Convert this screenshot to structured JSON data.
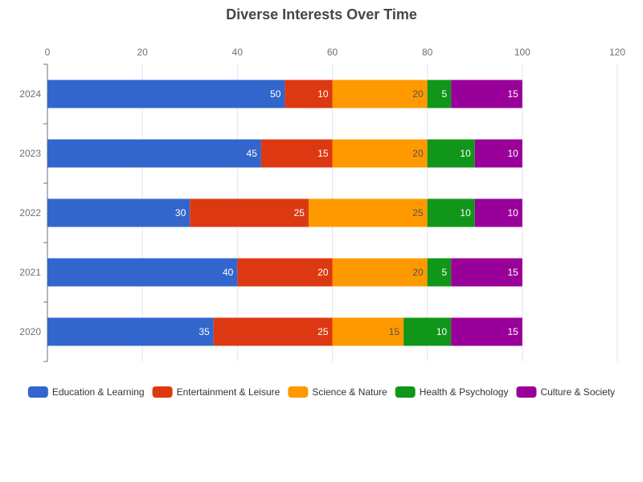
{
  "chart_data": {
    "type": "bar",
    "orientation": "horizontal",
    "stacked": true,
    "title": "Diverse Interests Over Time",
    "categories": [
      "2024",
      "2023",
      "2022",
      "2021",
      "2020"
    ],
    "xlim": [
      0,
      120
    ],
    "x_ticks": [
      "0",
      "20",
      "40",
      "60",
      "80",
      "100",
      "120"
    ],
    "grid": true,
    "legend_position": "bottom",
    "series": [
      {
        "name": "Education & Learning",
        "color": "#3366cc",
        "label_color": "#ffffff",
        "values": [
          50,
          45,
          30,
          40,
          35
        ]
      },
      {
        "name": "Entertainment & Leisure",
        "color": "#dc3912",
        "label_color": "#ffffff",
        "values": [
          10,
          15,
          25,
          20,
          25
        ]
      },
      {
        "name": "Science & Nature",
        "color": "#ff9900",
        "label_color": "#555555",
        "values": [
          20,
          20,
          25,
          20,
          15
        ]
      },
      {
        "name": "Health & Psychology",
        "color": "#109618",
        "label_color": "#ffffff",
        "values": [
          5,
          10,
          10,
          5,
          10
        ]
      },
      {
        "name": "Culture & Society",
        "color": "#990099",
        "label_color": "#ffffff",
        "values": [
          15,
          10,
          10,
          15,
          15
        ]
      }
    ]
  }
}
